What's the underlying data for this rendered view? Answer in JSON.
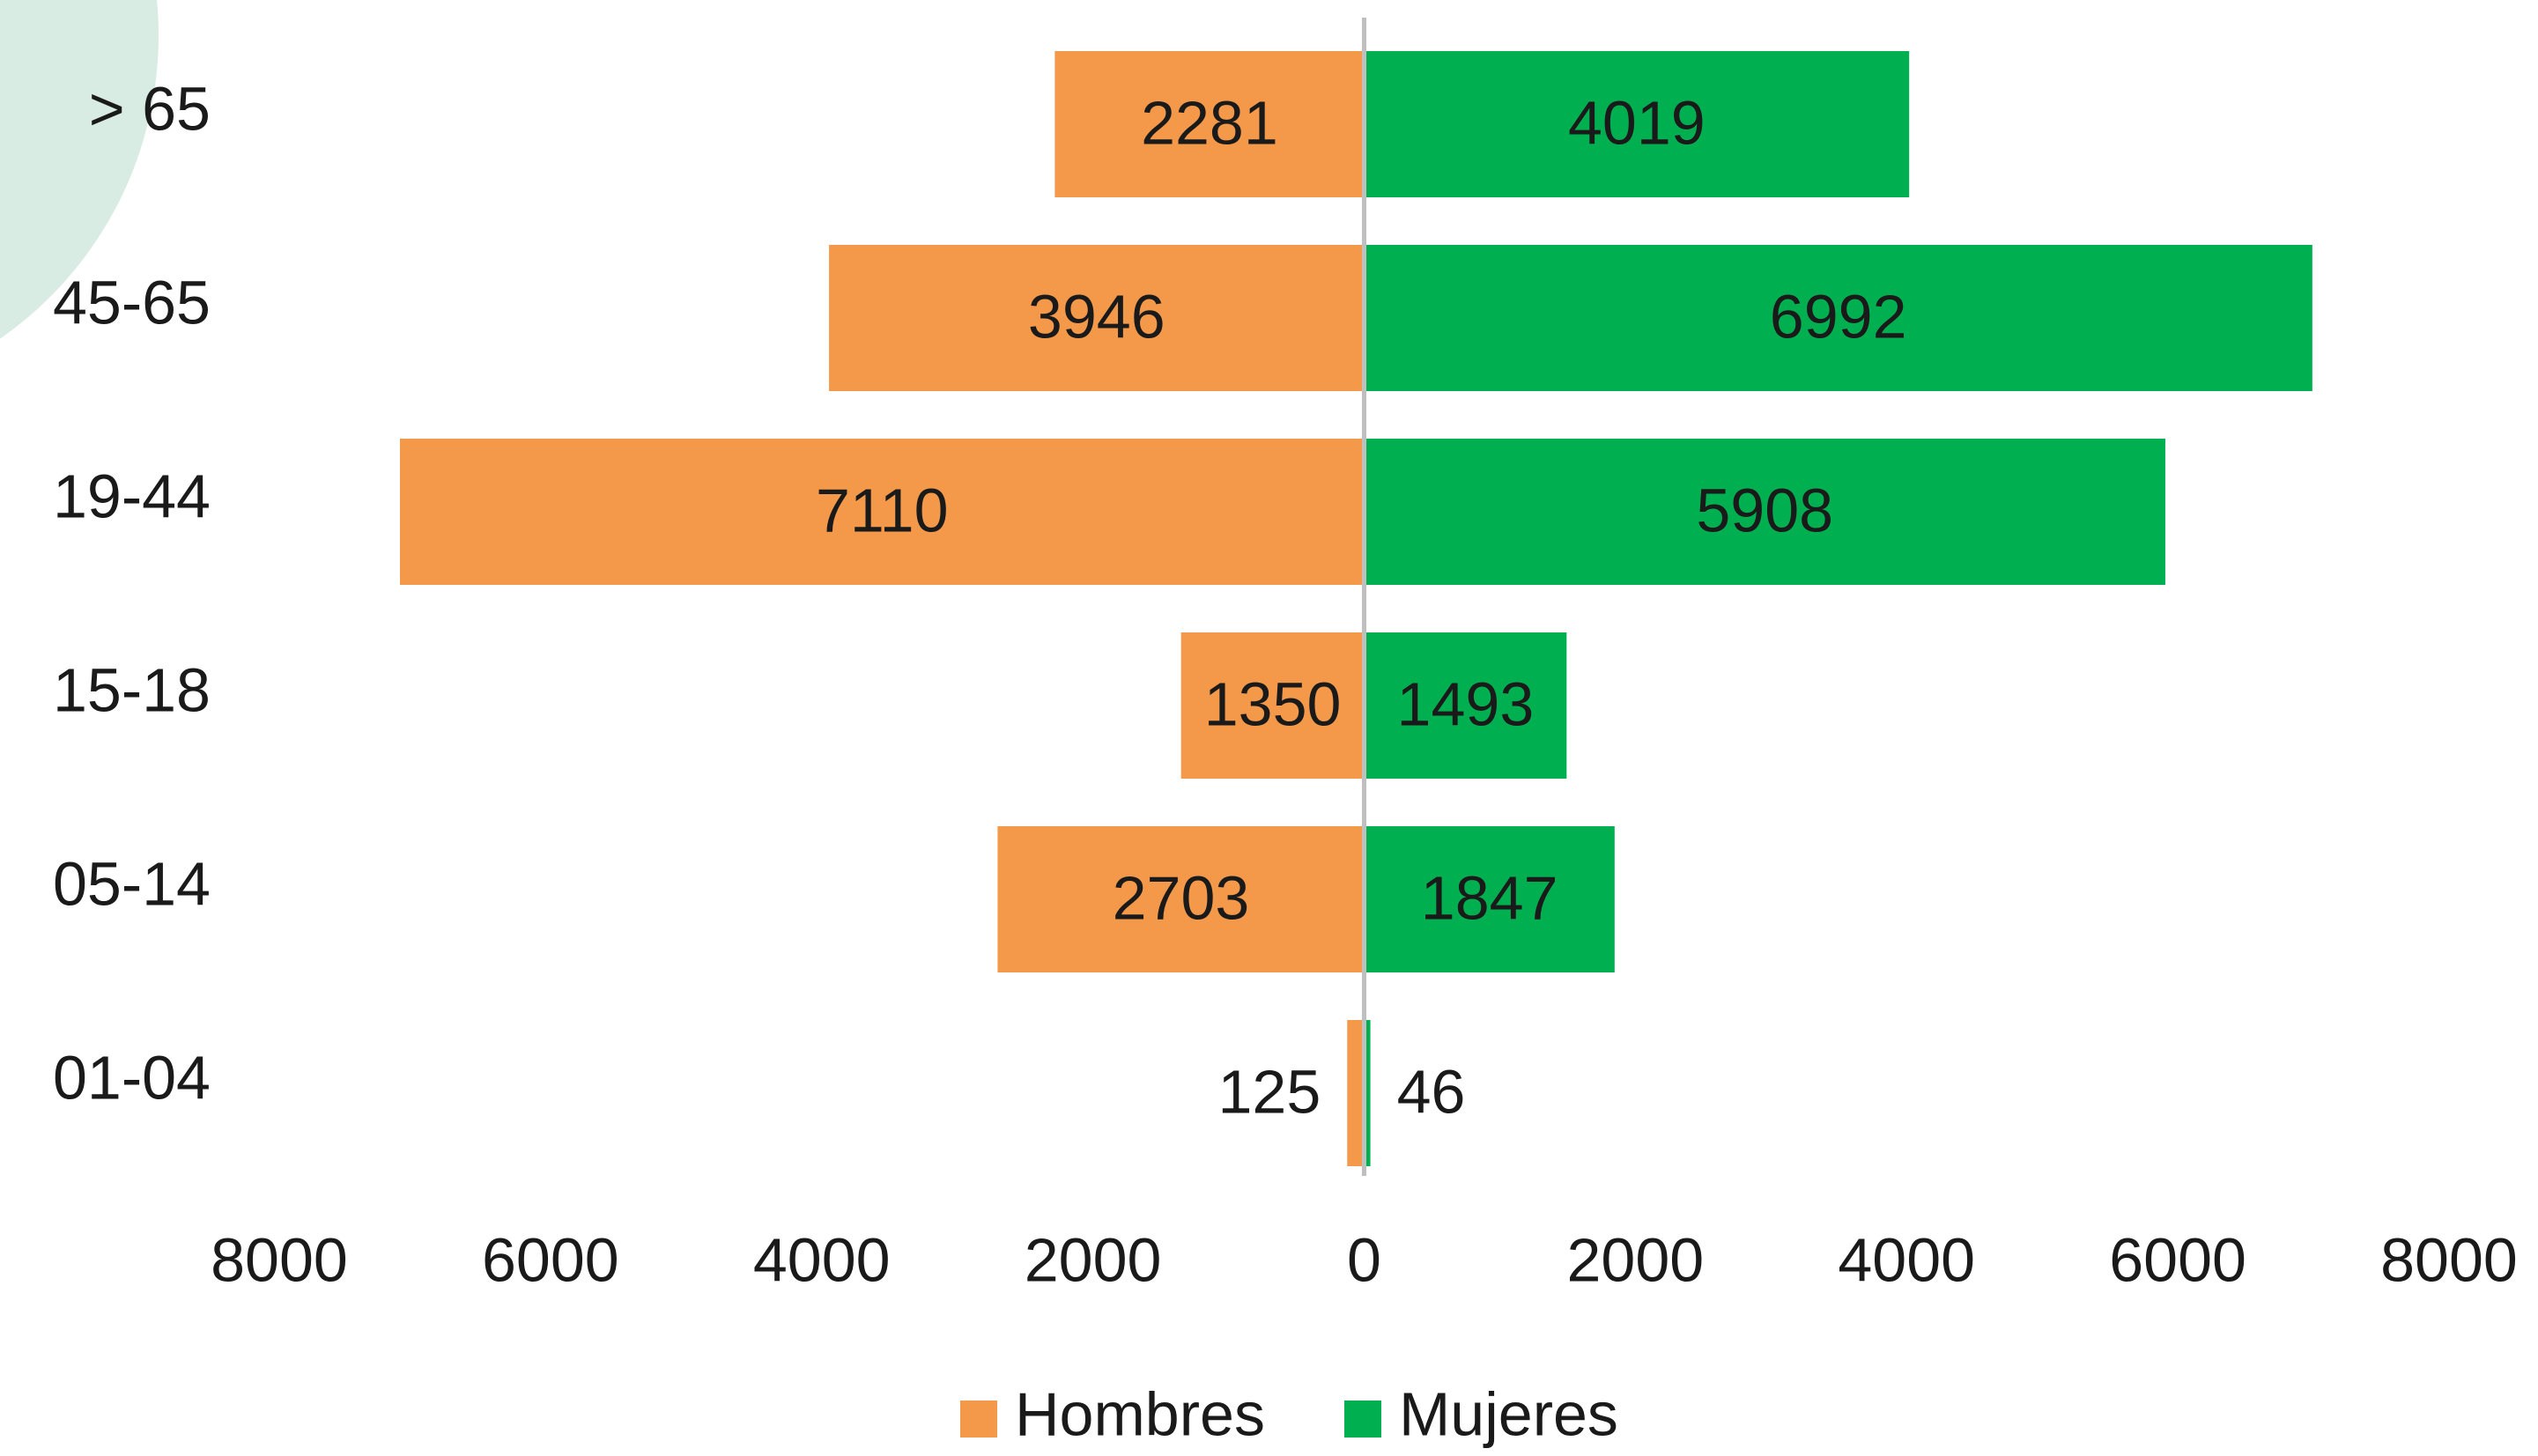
{
  "chart_data": {
    "type": "pyramid",
    "categories": [
      "> 65",
      "45-65",
      "19-44",
      "15-18",
      "05-14",
      "01-04"
    ],
    "series": [
      {
        "name": "Hombres",
        "color": "#f4994a",
        "values": [
          2281,
          3946,
          7110,
          1350,
          2703,
          125
        ]
      },
      {
        "name": "Mujeres",
        "color": "#00b050",
        "values": [
          4019,
          6992,
          5908,
          1493,
          1847,
          46
        ]
      }
    ],
    "xlim": [
      -8000,
      8000
    ],
    "xticks": [
      {
        "value": -8000,
        "label": "8000"
      },
      {
        "value": -6000,
        "label": "6000"
      },
      {
        "value": -4000,
        "label": "4000"
      },
      {
        "value": -2000,
        "label": "2000"
      },
      0,
      2000,
      4000,
      6000,
      8000
    ],
    "legend": "bottom"
  }
}
